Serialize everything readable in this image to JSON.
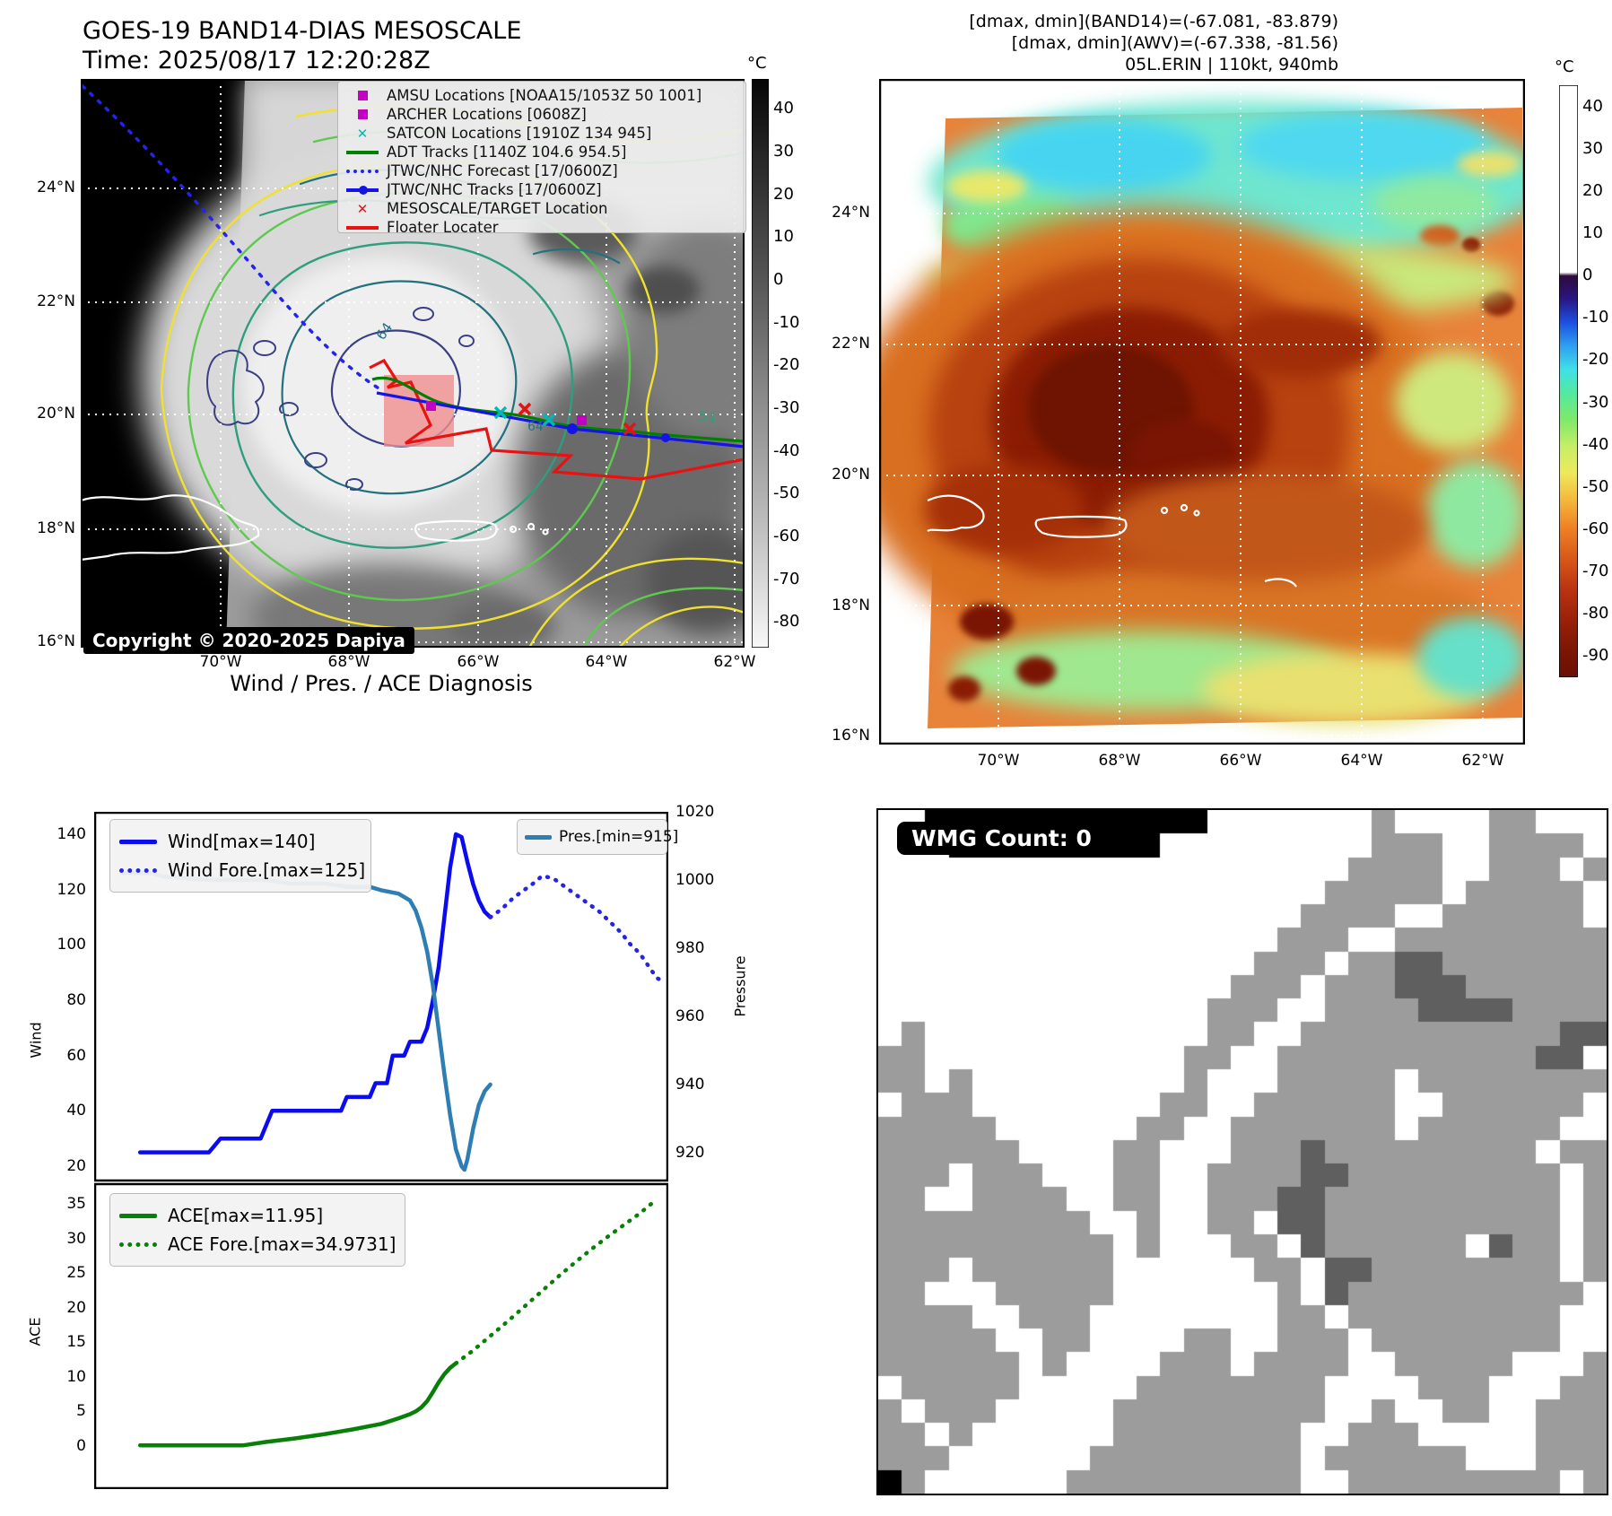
{
  "panel_tl": {
    "title": "GOES-19 BAND14-DIAS MESOSCALE",
    "subtitle": "Time: 2025/08/17 12:20:28Z",
    "copyright": "Copyright © 2020-2025 Dapiya",
    "legend": [
      {
        "label": "AMSU Locations [NOAA15/1053Z 50 1001]",
        "marker": "square",
        "color": "#c400c4"
      },
      {
        "label": "ARCHER Locations [0608Z]",
        "marker": "square",
        "color": "#c400c4"
      },
      {
        "label": "SATCON Locations [1910Z 134 945]",
        "marker": "x",
        "color": "#00b8b8"
      },
      {
        "label": "ADT Tracks [1140Z 104.6 954.5]",
        "marker": "line",
        "color": "#008000"
      },
      {
        "label": "JTWC/NHC Forecast [17/0600Z]",
        "marker": "dotted",
        "color": "#2424e8"
      },
      {
        "label": "JTWC/NHC Tracks [17/0600Z]",
        "marker": "line-dot",
        "color": "#1414e6"
      },
      {
        "label": "MESOSCALE/TARGET Location",
        "marker": "x",
        "color": "#e81212"
      },
      {
        "label": "Floater Locater",
        "marker": "line",
        "color": "#e81212"
      }
    ],
    "colorbar": {
      "title": "°C",
      "ticks": [
        40,
        30,
        20,
        10,
        0,
        -10,
        -20,
        -30,
        -40,
        -50,
        -60,
        -70,
        -80
      ]
    },
    "x_ticks": [
      "70°W",
      "68°W",
      "66°W",
      "64°W",
      "62°W"
    ],
    "y_ticks": [
      "24°N",
      "22°N",
      "20°N",
      "18°N",
      "16°N"
    ],
    "contour_labels": [
      "64",
      "54",
      "64"
    ]
  },
  "panel_tr": {
    "header_line1": "[dmax, dmin](BAND14)=(-67.081, -83.879)",
    "header_line2": "[dmax, dmin](AWV)=(-67.338, -81.56)",
    "header_line3": "05L.ERIN | 110kt, 940mb",
    "colorbar": {
      "title": "°C",
      "ticks": [
        40,
        30,
        20,
        10,
        0,
        -10,
        -20,
        -30,
        -40,
        -50,
        -60,
        -70,
        -80,
        -90
      ]
    },
    "x_ticks": [
      "70°W",
      "68°W",
      "66°W",
      "64°W",
      "62°W"
    ],
    "y_ticks": [
      "24°N",
      "22°N",
      "20°N",
      "18°N",
      "16°N"
    ]
  },
  "panel_bl": {
    "title": "Wind / Pres. / ACE Diagnosis",
    "wind_axis_label": "Wind",
    "pressure_axis_label": "Pressure",
    "ace_axis_label": "ACE",
    "wind_ticks": [
      140,
      120,
      100,
      80,
      60,
      40,
      20
    ],
    "pressure_ticks": [
      1020,
      1000,
      980,
      960,
      940,
      920
    ],
    "ace_ticks": [
      35,
      30,
      25,
      20,
      15,
      10,
      5,
      0
    ],
    "legend_wind": "Wind[max=140]",
    "legend_wind_fore": "Wind Fore.[max=125]",
    "legend_pres": "Pres.[min=915]",
    "legend_ace": "ACE[max=11.95]",
    "legend_ace_fore": "ACE Fore.[max=34.9731]"
  },
  "panel_br": {
    "wmg_label": "WMG Count: 0",
    "cell_colors": {
      ".": "#ffffff",
      "g": "#9c9c9c",
      "d": "#5f5f5f",
      "b": "#000000"
    },
    "grid_rows": [
      "..bbbbbbbbbbbb.......g....gg...",
      "...bbbbbbbbb.........ggg..gggg.",
      "....................gggg..ggg.g",
      "...................ggggg.ggggg.",
      "..................gggg..gggggg.",
      ".................ggg..ggggggggg",
      "................ggg.ggddggggggg",
      "...............ggg.gggdddgggggg",
      "..............ggg..ggggddddgggg",
      ".g............gg..gggggggggggdd",
      "gg...........gg..gggggggggggdd.",
      "gg.g.........g...ggggg.gggggggg",
      ".ggg........gg..gggggg..gggggg.",
      "ggggg......gg..ggggggg.gggggg..",
      "gggggg....gg...gggdggggggggg.gg",
      "ggg.ggg...gg..ggggddggggggggg.g",
      "gg..gggg..gg..gggddgggggggggg.g",
      "ggggggggg..g..gg.ddgggggggggg.g",
      "gggggggggg.g...gg.dgggggg.dgg.g",
      "ggg.gggggg......gg.ddgggggggg.g",
      "gg...ggggg.......g.dgggggggggg.",
      "gggg..ggg........gg.ggggggggg..",
      "ggggg..gg....gg..ggg.gggggggg..",
      "gggggg.g....ggg.gggg..ggggg...g",
      ".ggggg.....gggggggg....ggg...gg",
      "g.ggg.....ggggggggg..g..gg..ggg",
      "gg.g......gggggggg..ggg.....ggg",
      "ggg......ggggggggg.gggggg...ggg",
      "bg......gggggggggg..ggggggggg.g"
    ]
  },
  "colors": {
    "wind": "#0b0bf0",
    "wind_forecast": "#2424e8",
    "pressure": "#2e7eb4",
    "ace": "#088008",
    "ace_forecast": "#088008",
    "target_box": "#f08f8f",
    "amsu": "#c400c4",
    "satcon": "#00b8b8",
    "floater": "#e81212",
    "adt": "#008000",
    "jtwc": "#1414e6"
  },
  "chart_data": [
    {
      "type": "line",
      "title": "Wind / Pres. / ACE Diagnosis",
      "x_note": "time axis, no tick labels shown (normalized 0-100)",
      "ylabel_left": "Wind",
      "ylabel_right": "Pressure",
      "ylim_left": [
        20,
        140
      ],
      "ylim_right": [
        915,
        1020
      ],
      "series": [
        {
          "name": "Wind[max=140]",
          "style": "solid",
          "axis": "left",
          "color": "#0b0bf0",
          "points": [
            [
              8,
              25
            ],
            [
              20,
              25
            ],
            [
              22,
              30
            ],
            [
              29,
              30
            ],
            [
              31,
              40
            ],
            [
              43,
              40
            ],
            [
              44,
              45
            ],
            [
              48,
              45
            ],
            [
              49,
              50
            ],
            [
              51,
              50
            ],
            [
              52,
              60
            ],
            [
              54,
              60
            ],
            [
              55,
              65
            ],
            [
              57,
              65
            ],
            [
              58,
              70
            ],
            [
              59,
              80
            ],
            [
              60,
              92
            ],
            [
              61,
              110
            ],
            [
              62,
              128
            ],
            [
              63,
              140
            ],
            [
              64,
              139
            ],
            [
              65,
              130
            ],
            [
              66,
              122
            ],
            [
              67,
              116
            ],
            [
              68,
              112
            ],
            [
              69,
              110
            ]
          ]
        },
        {
          "name": "Wind Fore.[max=125]",
          "style": "dotted",
          "axis": "left",
          "color": "#2424e8",
          "points": [
            [
              69,
              110
            ],
            [
              71,
              113
            ],
            [
              73,
              117
            ],
            [
              75,
              120
            ],
            [
              77,
              123
            ],
            [
              78,
              125
            ],
            [
              80,
              124
            ],
            [
              82,
              121
            ],
            [
              84,
              118
            ],
            [
              86,
              115
            ],
            [
              88,
              112
            ],
            [
              90,
              108
            ],
            [
              92,
              104
            ],
            [
              93,
              101
            ],
            [
              94,
              99
            ],
            [
              95,
              97
            ],
            [
              96,
              94
            ],
            [
              97,
              91
            ],
            [
              98,
              88
            ],
            [
              99,
              87
            ]
          ]
        },
        {
          "name": "Pres.[min=915]",
          "style": "solid",
          "axis": "right",
          "color": "#2e7eb4",
          "points": [
            [
              5,
              1002
            ],
            [
              10,
              1002
            ],
            [
              12,
              1001
            ],
            [
              20,
              1000
            ],
            [
              30,
              1000
            ],
            [
              34,
              999
            ],
            [
              40,
              999
            ],
            [
              44,
              998
            ],
            [
              48,
              998
            ],
            [
              50,
              997
            ],
            [
              53,
              996
            ],
            [
              55,
              994
            ],
            [
              56,
              991
            ],
            [
              57,
              986
            ],
            [
              58,
              979
            ],
            [
              59,
              969
            ],
            [
              60,
              956
            ],
            [
              61,
              943
            ],
            [
              62,
              931
            ],
            [
              63,
              921
            ],
            [
              64,
              916
            ],
            [
              64.5,
              915
            ],
            [
              65,
              918
            ],
            [
              66,
              927
            ],
            [
              67,
              934
            ],
            [
              68,
              938
            ],
            [
              69,
              940
            ]
          ]
        }
      ]
    },
    {
      "type": "line",
      "ylabel": "ACE",
      "ylim": [
        0,
        35
      ],
      "series": [
        {
          "name": "ACE[max=11.95]",
          "style": "solid",
          "color": "#088008",
          "points": [
            [
              8,
              0.1
            ],
            [
              26,
              0.1
            ],
            [
              30,
              0.6
            ],
            [
              35,
              1.1
            ],
            [
              40,
              1.7
            ],
            [
              45,
              2.4
            ],
            [
              50,
              3.2
            ],
            [
              53,
              4.0
            ],
            [
              55,
              4.6
            ],
            [
              56,
              5.0
            ],
            [
              57,
              5.6
            ],
            [
              58,
              6.5
            ],
            [
              59,
              7.8
            ],
            [
              60,
              9.2
            ],
            [
              61,
              10.4
            ],
            [
              62,
              11.3
            ],
            [
              63,
              11.95
            ]
          ]
        },
        {
          "name": "ACE Fore.[max=34.9731]",
          "style": "dotted",
          "color": "#088008",
          "points": [
            [
              63,
              11.95
            ],
            [
              66,
              13.8
            ],
            [
              69,
              15.9
            ],
            [
              72,
              18.0
            ],
            [
              75,
              20.2
            ],
            [
              78,
              22.4
            ],
            [
              81,
              24.6
            ],
            [
              84,
              26.7
            ],
            [
              87,
              28.7
            ],
            [
              90,
              30.6
            ],
            [
              93,
              32.4
            ],
            [
              95,
              33.6
            ],
            [
              97,
              34.97
            ]
          ]
        }
      ]
    }
  ]
}
